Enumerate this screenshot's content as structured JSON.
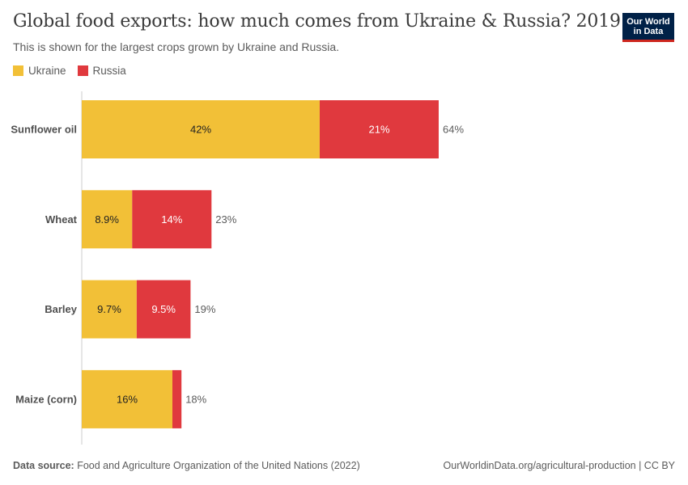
{
  "header": {
    "title": "Global food exports: how much comes from Ukraine & Russia? 2019",
    "subtitle": "This is shown for the largest crops grown by Ukraine and Russia."
  },
  "logo": {
    "line1": "Our World",
    "line2": "in Data"
  },
  "legend": [
    {
      "name": "Ukraine",
      "color": "#f2c037"
    },
    {
      "name": "Russia",
      "color": "#e0393e"
    }
  ],
  "chart_data": {
    "type": "bar",
    "orientation": "horizontal",
    "stacked": true,
    "title": "Global food exports: how much comes from Ukraine & Russia? 2019",
    "subtitle": "This is shown for the largest crops grown by Ukraine and Russia.",
    "categories": [
      "Sunflower oil",
      "Wheat",
      "Barley",
      "Maize (corn)"
    ],
    "series": [
      {
        "name": "Ukraine",
        "color": "#f2c037",
        "values": [
          42,
          8.9,
          9.7,
          16
        ],
        "labels": [
          "42%",
          "8.9%",
          "9.7%",
          "16%"
        ]
      },
      {
        "name": "Russia",
        "color": "#e0393e",
        "values": [
          21,
          14,
          9.5,
          1.6
        ],
        "labels": [
          "21%",
          "14%",
          "9.5%",
          ""
        ]
      }
    ],
    "totals": [
      "64%",
      "23%",
      "19%",
      "18%"
    ],
    "xlim": [
      0,
      64
    ],
    "grid": false,
    "legend_position": "top-left"
  },
  "footer": {
    "source_label": "Data source:",
    "source_text": "Food and Agriculture Organization of the United Nations (2022)",
    "url": "OurWorldinData.org/agricultural-production | CC BY"
  }
}
